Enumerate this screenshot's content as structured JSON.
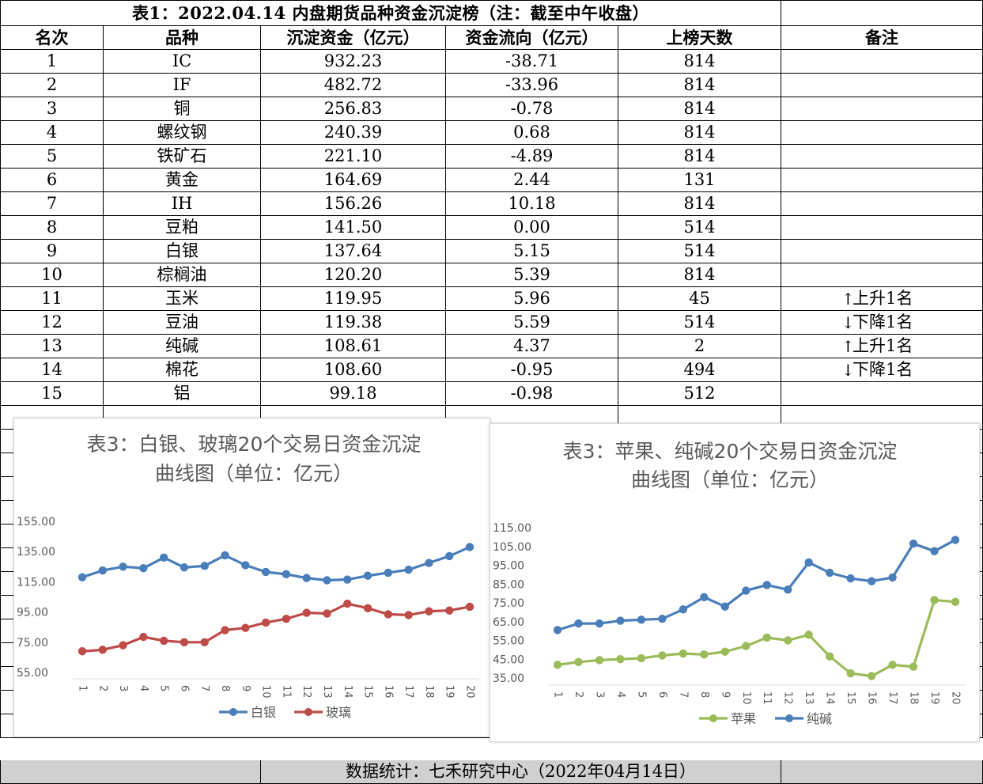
{
  "table": {
    "title": "表1：2022.04.14 内盘期货品种资金沉淀榜（注：截至中午收盘）",
    "headers": [
      "名次",
      "品种",
      "沉淀资金（亿元）",
      "资金流向（亿元）",
      "上榜天数",
      "备注"
    ],
    "rows": [
      {
        "rank": "1",
        "name": "IC",
        "funds": "932.23",
        "flow": "-38.71",
        "days": "814",
        "arrow": "",
        "note": ""
      },
      {
        "rank": "2",
        "name": "IF",
        "funds": "482.72",
        "flow": "-33.96",
        "days": "814",
        "arrow": "",
        "note": ""
      },
      {
        "rank": "3",
        "name": "铜",
        "funds": "256.83",
        "flow": "-0.78",
        "days": "814",
        "arrow": "",
        "note": ""
      },
      {
        "rank": "4",
        "name": "螺纹钢",
        "funds": "240.39",
        "flow": "0.68",
        "days": "814",
        "arrow": "",
        "note": ""
      },
      {
        "rank": "5",
        "name": "铁矿石",
        "funds": "221.10",
        "flow": "-4.89",
        "days": "814",
        "arrow": "",
        "note": ""
      },
      {
        "rank": "6",
        "name": "黄金",
        "funds": "164.69",
        "flow": "2.44",
        "days": "131",
        "arrow": "",
        "note": ""
      },
      {
        "rank": "7",
        "name": "IH",
        "funds": "156.26",
        "flow": "10.18",
        "days": "814",
        "arrow": "",
        "note": ""
      },
      {
        "rank": "8",
        "name": "豆粕",
        "funds": "141.50",
        "flow": "0.00",
        "days": "514",
        "arrow": "",
        "note": ""
      },
      {
        "rank": "9",
        "name": "白银",
        "funds": "137.64",
        "flow": "5.15",
        "days": "514",
        "arrow": "",
        "note": ""
      },
      {
        "rank": "10",
        "name": "棕榈油",
        "funds": "120.20",
        "flow": "5.39",
        "days": "814",
        "arrow": "",
        "note": ""
      },
      {
        "rank": "11",
        "name": "玉米",
        "funds": "119.95",
        "flow": "5.96",
        "days": "45",
        "arrow": "↑",
        "note": "上升1名"
      },
      {
        "rank": "12",
        "name": "豆油",
        "funds": "119.38",
        "flow": "5.59",
        "days": "514",
        "arrow": "↓",
        "note": "下降1名"
      },
      {
        "rank": "13",
        "name": "纯碱",
        "funds": "108.61",
        "flow": "4.37",
        "days": "2",
        "arrow": "↑",
        "note": "上升1名"
      },
      {
        "rank": "14",
        "name": "棉花",
        "funds": "108.60",
        "flow": "-0.95",
        "days": "494",
        "arrow": "↓",
        "note": "下降1名"
      },
      {
        "rank": "15",
        "name": "铝",
        "funds": "99.18",
        "flow": "-0.98",
        "days": "512",
        "arrow": "",
        "note": ""
      }
    ],
    "footer": "数据统计：七禾研究中心（2022年04月14日）"
  },
  "chart_data": [
    {
      "type": "line",
      "title_line1": "表3：白银、玻璃20个交易日资金沉淀",
      "title_line2": "曲线图（单位：亿元）",
      "x": [
        "1",
        "2",
        "3",
        "4",
        "5",
        "6",
        "7",
        "8",
        "9",
        "10",
        "11",
        "12",
        "13",
        "14",
        "15",
        "16",
        "17",
        "18",
        "19",
        "20"
      ],
      "y_ticks": [
        "155.00",
        "135.00",
        "115.00",
        "95.00",
        "75.00",
        "55.00"
      ],
      "ylim": [
        55,
        155
      ],
      "grid": false,
      "legend_position": "bottom",
      "series": [
        {
          "name": "白银",
          "color": "#4a7ebb",
          "values": [
            118,
            122.5,
            125,
            124,
            131,
            124.5,
            125.5,
            132.5,
            126,
            121.5,
            120,
            117.5,
            116,
            116.5,
            119,
            121,
            123,
            127.5,
            132,
            138
          ]
        },
        {
          "name": "玻璃",
          "color": "#be4b48",
          "values": [
            69,
            70,
            73,
            78.5,
            76,
            75,
            75,
            83,
            84.5,
            88,
            90.5,
            94.5,
            94,
            100.5,
            97.5,
            93.5,
            93,
            95.5,
            96,
            98.5
          ]
        }
      ]
    },
    {
      "type": "line",
      "title_line1": "表3：苹果、纯碱20个交易日资金沉淀",
      "title_line2": "曲线图（单位：亿元）",
      "x": [
        "1",
        "2",
        "3",
        "4",
        "5",
        "6",
        "7",
        "8",
        "9",
        "10",
        "11",
        "12",
        "13",
        "14",
        "15",
        "16",
        "17",
        "18",
        "19",
        "20"
      ],
      "y_ticks": [
        "115.00",
        "105.00",
        "95.00",
        "85.00",
        "75.00",
        "65.00",
        "55.00",
        "45.00",
        "35.00"
      ],
      "ylim": [
        35,
        115
      ],
      "grid": false,
      "legend_position": "bottom",
      "series": [
        {
          "name": "苹果",
          "color": "#9bbb59",
          "values": [
            42,
            43.5,
            44.5,
            45,
            45.5,
            47,
            48,
            47.5,
            49,
            52,
            56.5,
            55,
            58,
            46.5,
            37.5,
            36,
            42,
            41,
            76.5,
            75.5
          ]
        },
        {
          "name": "纯碱",
          "color": "#4a7ebb",
          "values": [
            60.5,
            64,
            64,
            65.5,
            66,
            66.5,
            71.5,
            78,
            73,
            81.5,
            84.5,
            82,
            96.5,
            91,
            88,
            86.5,
            88.5,
            106.5,
            102.5,
            108.5
          ]
        }
      ]
    }
  ]
}
